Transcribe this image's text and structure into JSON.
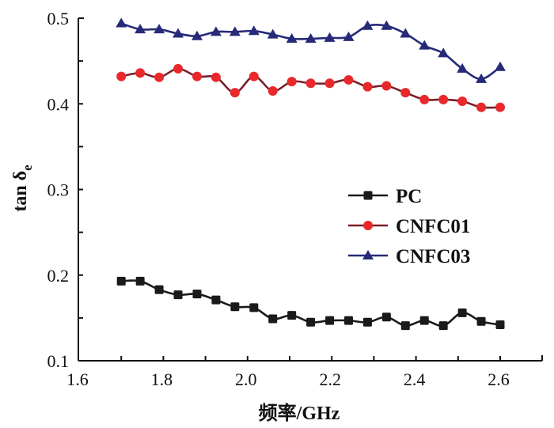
{
  "chart_data": {
    "type": "line",
    "title": "",
    "xlabel": "频率/GHz",
    "ylabel_main": "tan δ",
    "ylabel_sub": "e",
    "xlim": [
      1.6,
      2.7
    ],
    "ylim": [
      0.1,
      0.5
    ],
    "x_ticks": [
      1.6,
      1.8,
      2.0,
      2.2,
      2.4,
      2.6
    ],
    "x_tick_labels": [
      "1.6",
      "1.8",
      "2.0",
      "2.2",
      "2.4",
      "2.6"
    ],
    "y_ticks": [
      0.1,
      0.2,
      0.3,
      0.4,
      0.5
    ],
    "y_tick_labels": [
      "0.1",
      "0.2",
      "0.3",
      "0.4",
      "0.5"
    ],
    "grid": false,
    "legend_position": "center-right",
    "x": [
      1.7,
      1.745,
      1.79,
      1.835,
      1.88,
      1.925,
      1.97,
      2.015,
      2.06,
      2.105,
      2.15,
      2.195,
      2.24,
      2.285,
      2.33,
      2.375,
      2.42,
      2.465,
      2.51,
      2.555,
      2.6
    ],
    "series": [
      {
        "name": "PC",
        "color": "#1a1a1a",
        "marker": "square",
        "values": [
          0.193,
          0.193,
          0.183,
          0.177,
          0.178,
          0.171,
          0.163,
          0.162,
          0.149,
          0.153,
          0.145,
          0.147,
          0.147,
          0.145,
          0.151,
          0.141,
          0.147,
          0.141,
          0.156,
          0.146,
          0.142
        ]
      },
      {
        "name": "CNFC01",
        "color": "#e8282b",
        "line_color": "#7a1f2a",
        "marker": "circle",
        "values": [
          0.432,
          0.436,
          0.431,
          0.441,
          0.432,
          0.431,
          0.413,
          0.432,
          0.415,
          0.426,
          0.424,
          0.424,
          0.428,
          0.42,
          0.421,
          0.413,
          0.405,
          0.405,
          0.403,
          0.396,
          0.396
        ]
      },
      {
        "name": "CNFC03",
        "color": "#262a78",
        "marker": "triangle",
        "values": [
          0.494,
          0.487,
          0.487,
          0.482,
          0.479,
          0.484,
          0.484,
          0.485,
          0.481,
          0.476,
          0.476,
          0.477,
          0.478,
          0.491,
          0.491,
          0.482,
          0.468,
          0.459,
          0.441,
          0.429,
          0.443
        ]
      }
    ]
  }
}
